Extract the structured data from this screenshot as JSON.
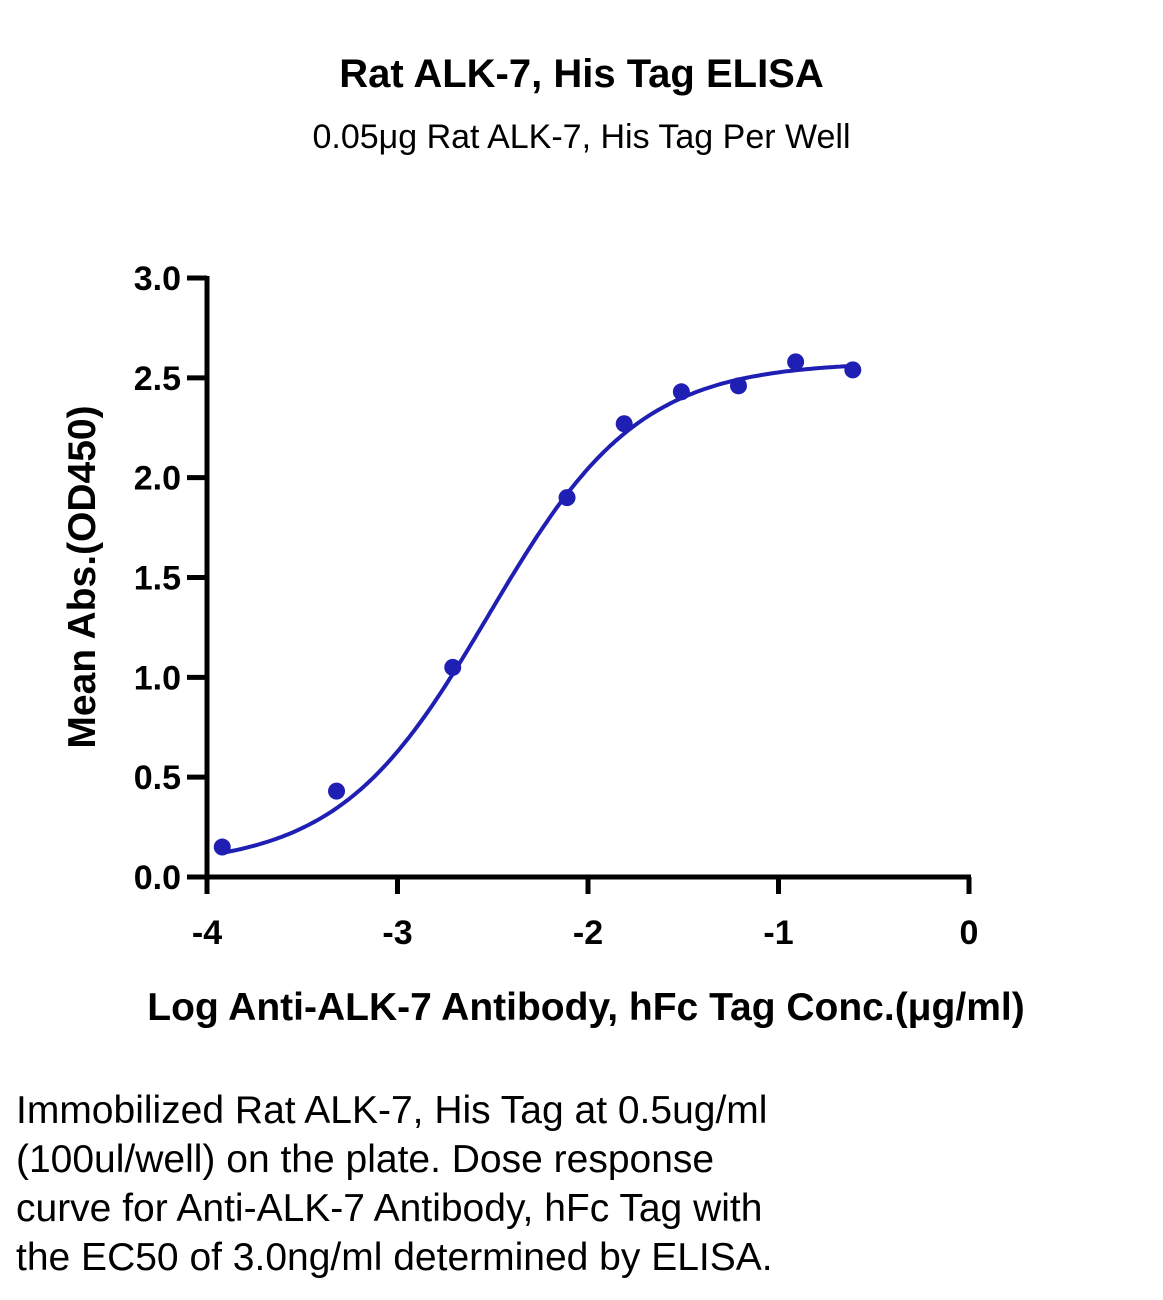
{
  "chart_data": {
    "type": "scatter",
    "title": "Rat ALK-7, His Tag ELISA",
    "subtitle": "0.05μg Rat ALK-7, His Tag Per Well",
    "xlabel": "Log Anti-ALK-7 Antibody, hFc Tag Conc.(μg/ml)",
    "ylabel": "Mean Abs.(OD450)",
    "xlim": [
      -4,
      0
    ],
    "ylim": [
      0,
      3.0
    ],
    "x_ticks": [
      "-4",
      "-3",
      "-2",
      "-1",
      "0"
    ],
    "y_ticks": [
      "0.0",
      "0.5",
      "1.0",
      "1.5",
      "2.0",
      "2.5",
      "3.0"
    ],
    "grid": false,
    "series": [
      {
        "color": "#1f1fb4",
        "x": [
          -3.92,
          -3.32,
          -2.71,
          -2.11,
          -1.81,
          -1.51,
          -1.21,
          -0.91,
          -0.61
        ],
        "y": [
          0.15,
          0.43,
          1.05,
          1.9,
          2.27,
          2.43,
          2.46,
          2.58,
          2.54
        ]
      }
    ],
    "fit": {
      "type": "4PL",
      "bottom": 0.05,
      "top": 2.58,
      "logEC50": -2.52,
      "hill": 1.1
    }
  },
  "caption": [
    "Immobilized Rat ALK-7, His Tag at 0.5ug/ml",
    "(100ul/well) on the plate. Dose response",
    "curve for Anti-ALK-7 Antibody, hFc Tag with",
    "the EC50 of 3.0ng/ml determined by ELISA."
  ]
}
